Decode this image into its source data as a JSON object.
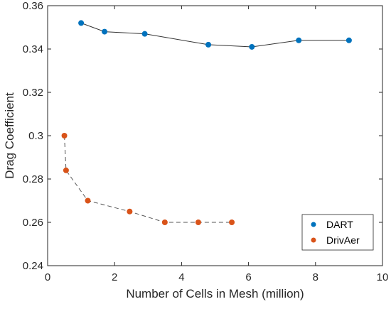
{
  "chart_data": {
    "type": "line",
    "title": "",
    "xlabel": "Number of Cells in Mesh (million)",
    "ylabel": "Drag Coefficient",
    "xlim": [
      0,
      10
    ],
    "ylim": [
      0.24,
      0.36
    ],
    "xticks": [
      0,
      2,
      4,
      6,
      8,
      10
    ],
    "xtick_labels": [
      "0",
      "2",
      "4",
      "6",
      "8",
      "10"
    ],
    "yticks": [
      0.24,
      0.26,
      0.28,
      0.3,
      0.32,
      0.34,
      0.36
    ],
    "ytick_labels": [
      "0.24",
      "0.26",
      "0.28",
      "0.3",
      "0.32",
      "0.34",
      "0.36"
    ],
    "grid": false,
    "legend_position": "bottom-right",
    "series": [
      {
        "name": "DART",
        "color": "#0072BD",
        "line_color": "#333333",
        "line_style": "solid",
        "x": [
          1.0,
          1.7,
          2.9,
          4.8,
          6.1,
          7.5,
          9.0
        ],
        "y": [
          0.352,
          0.348,
          0.347,
          0.342,
          0.341,
          0.344,
          0.344
        ]
      },
      {
        "name": "DrivAer",
        "color": "#D95319",
        "line_color": "#555555",
        "line_style": "dashed",
        "x": [
          0.5,
          0.55,
          1.2,
          2.45,
          3.5,
          4.5,
          5.5
        ],
        "y": [
          0.3,
          0.284,
          0.27,
          0.265,
          0.26,
          0.26,
          0.26
        ]
      }
    ]
  }
}
